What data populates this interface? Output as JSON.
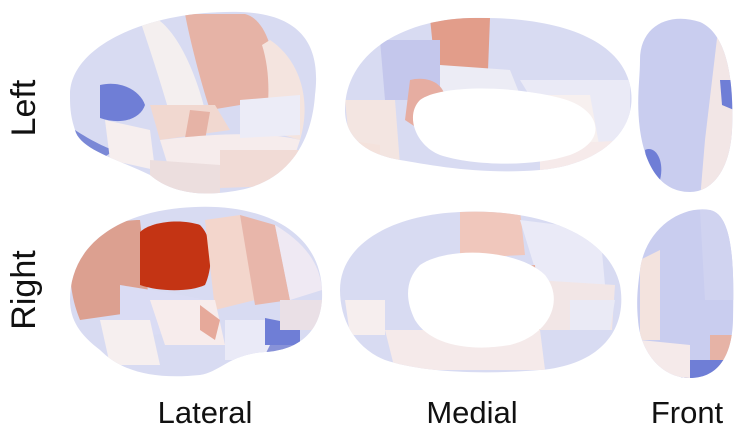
{
  "rows": [
    {
      "label": "Left"
    },
    {
      "label": "Right"
    }
  ],
  "columns": [
    {
      "label": "Lateral"
    },
    {
      "label": "Medial"
    },
    {
      "label": "Front"
    }
  ],
  "colors": {
    "deep_red": "#c43414",
    "mid_red": "#e0a08f",
    "light_red": "#f2d2c8",
    "pale": "#f6eeee",
    "white": "#ffffff",
    "light_blue": "#d8dbf2",
    "mid_blue": "#b3b9e8",
    "deep_blue": "#6f7ed6"
  }
}
